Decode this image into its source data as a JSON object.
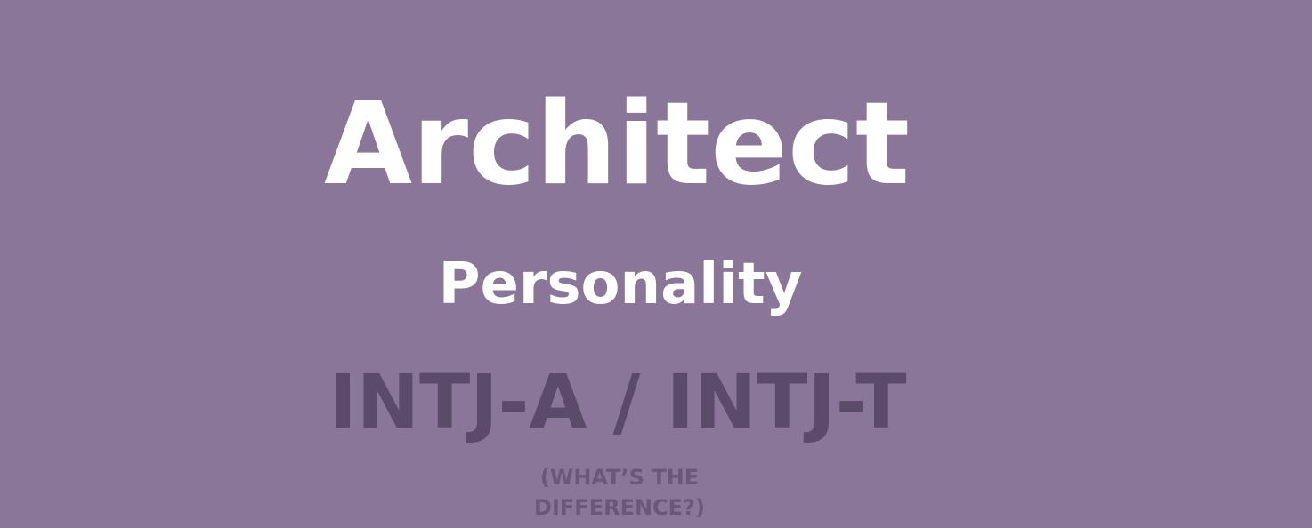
{
  "hero": {
    "title": "Architect",
    "subtitle": "Personality",
    "code": "INTJ-A / INTJ-T",
    "difference_link": "(WHAT’S THE DIFFERENCE?)"
  },
  "colors": {
    "background": "#8a7698",
    "title_text": "#ffffff",
    "code_text": "#5c4a6b",
    "link_text": "#6a5779"
  }
}
